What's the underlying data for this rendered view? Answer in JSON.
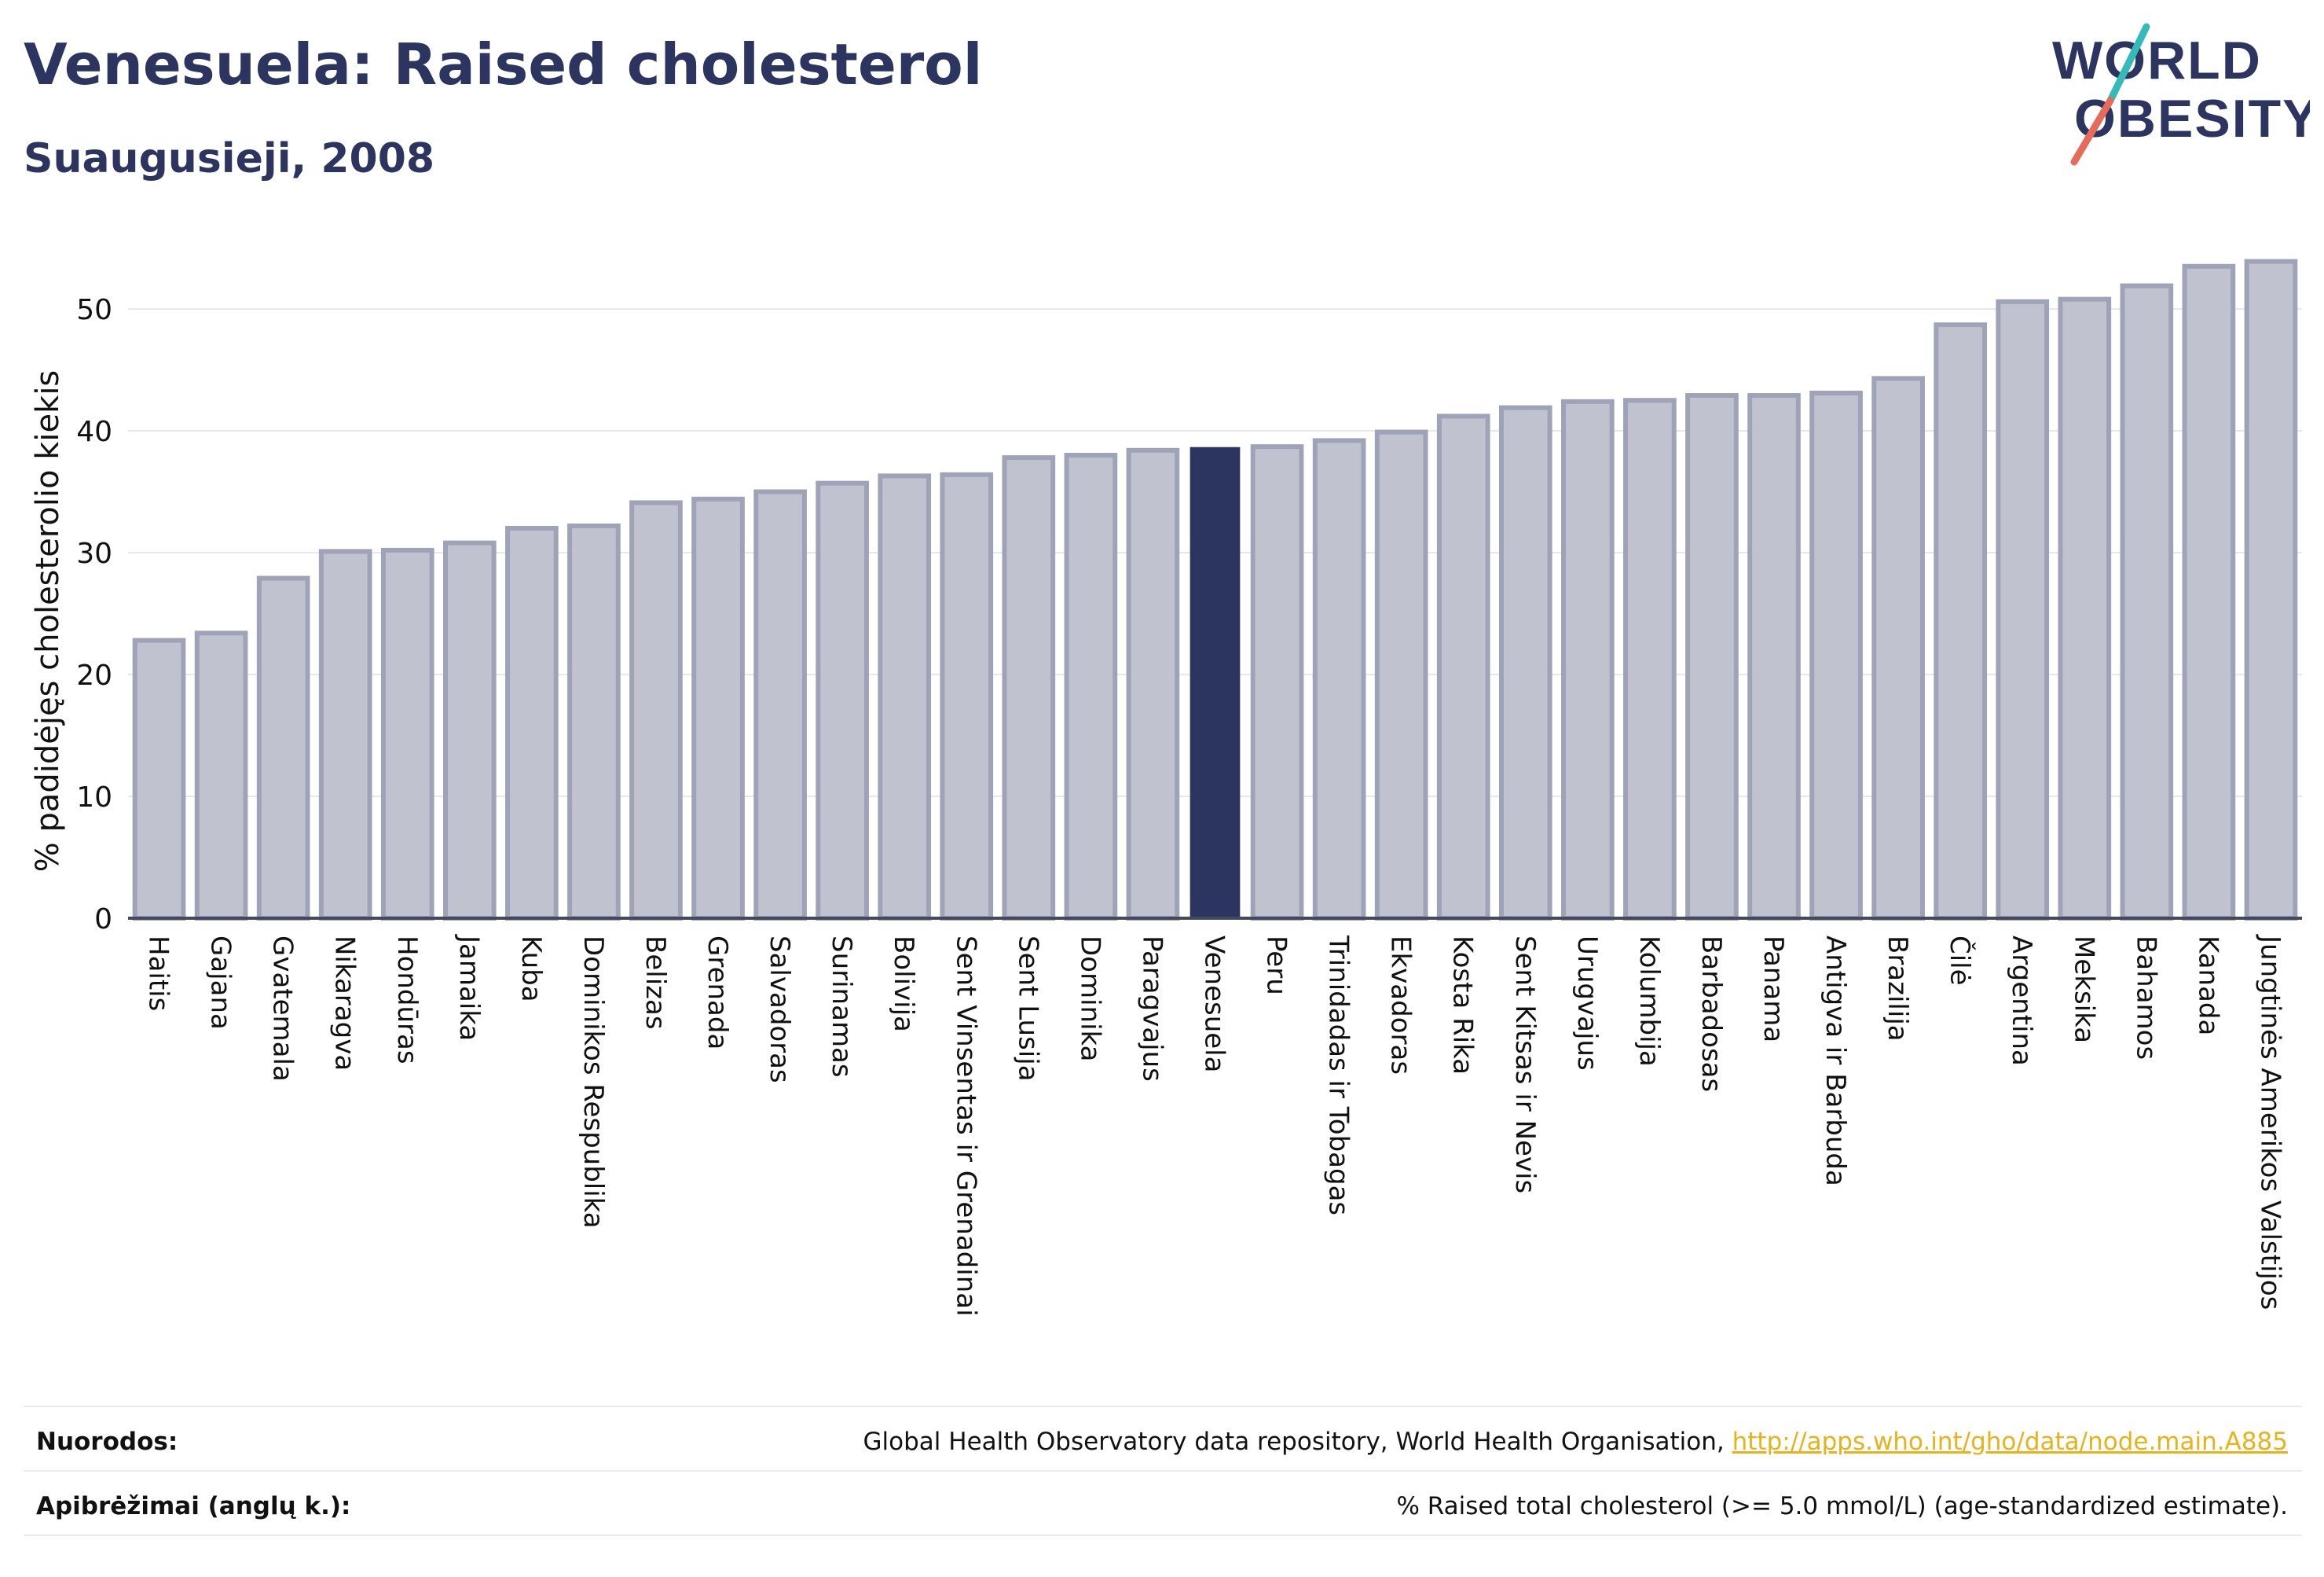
{
  "header": {
    "title": "Venesuela: Raised cholesterol",
    "subtitle": "Suaugusieji, 2008"
  },
  "logo": {
    "line1": "WORLD",
    "line2": "OBESITY"
  },
  "colors": {
    "highlight": "#2b355f",
    "bar_fill": "#c0c3cf",
    "bar_stroke": "#9ea3b8",
    "title": "#2b355f",
    "link": "#e8b21a",
    "logo_teal": "#35b9b9",
    "logo_coral": "#e76b5a"
  },
  "chart_data": {
    "type": "bar",
    "title": "Venesuela: Raised cholesterol",
    "subtitle": "Suaugusieji, 2008",
    "xlabel": "",
    "ylabel": "% padidėjęs cholesterolio kiekis",
    "ylim": [
      0,
      56
    ],
    "yticks": [
      0,
      10,
      20,
      30,
      40,
      50
    ],
    "grid": true,
    "highlight": "Venesuela",
    "categories": [
      "Haitis",
      "Gajana",
      "Gvatemala",
      "Nikaragva",
      "Hondūras",
      "Jamaika",
      "Kuba",
      "Dominikos Respublika",
      "Belizas",
      "Grenada",
      "Salvadoras",
      "Surinamas",
      "Bolivija",
      "Sent Vinsentas ir Grenadinai",
      "Sent Lusija",
      "Dominika",
      "Paragvajus",
      "Venesuela",
      "Peru",
      "Trinidadas ir Tobagas",
      "Ekvadoras",
      "Kosta Rika",
      "Sent Kitsas ir Nevis",
      "Urugvajus",
      "Kolumbija",
      "Barbadosas",
      "Panama",
      "Antigva ir Barbuda",
      "Brazilija",
      "Čilė",
      "Argentina",
      "Meksika",
      "Bahamos",
      "Kanada",
      "Jungtinės Amerikos Valstijos"
    ],
    "values": [
      22.8,
      23.4,
      27.9,
      30.1,
      30.2,
      30.8,
      32.0,
      32.2,
      34.1,
      34.4,
      35.0,
      35.7,
      36.3,
      36.4,
      37.8,
      38.0,
      38.4,
      38.6,
      38.7,
      39.2,
      39.9,
      41.2,
      41.9,
      42.4,
      42.5,
      42.9,
      42.9,
      43.1,
      44.3,
      48.7,
      50.6,
      50.8,
      51.9,
      53.5,
      53.9
    ]
  },
  "footer": {
    "refs_label": "Nuorodos:",
    "refs_text": "Global Health Observatory data repository, World Health Organisation, ",
    "refs_link": "http://apps.who.int/gho/data/node.main.A885",
    "defs_label": "Apibrėžimai (anglų k.):",
    "defs_text": "% Raised total cholesterol (>= 5.0 mmol/L) (age-standardized estimate)."
  }
}
